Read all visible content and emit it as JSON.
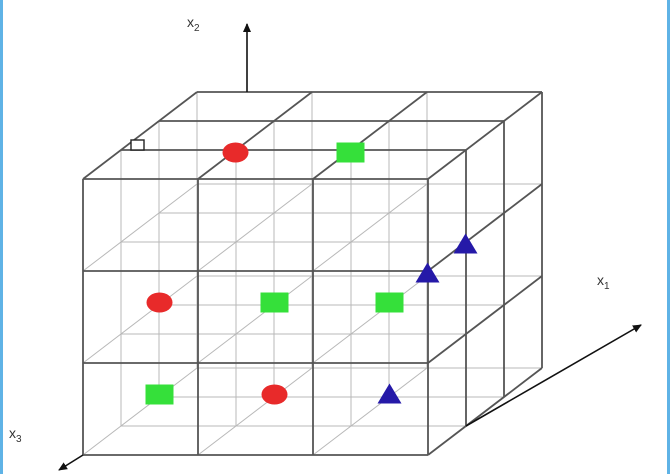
{
  "axes": {
    "x1": {
      "label": "x",
      "sub": "1"
    },
    "x2": {
      "label": "x",
      "sub": "2"
    },
    "x3": {
      "label": "x",
      "sub": "3"
    }
  },
  "grid": {
    "divisions": 3
  },
  "colors": {
    "circle": "#e82a2a",
    "square": "#35e03a",
    "triangle": "#2519a8",
    "line": "#555555",
    "hidden_line": "#b8b8b8"
  },
  "markers": [
    {
      "shape": "circle",
      "cell": [
        0,
        2,
        2
      ]
    },
    {
      "shape": "circle",
      "cell": [
        0,
        1,
        0
      ]
    },
    {
      "shape": "circle",
      "cell": [
        1,
        0,
        0
      ]
    },
    {
      "shape": "square",
      "cell": [
        1,
        2,
        2
      ]
    },
    {
      "shape": "square",
      "cell": [
        1,
        1,
        0
      ]
    },
    {
      "shape": "square",
      "cell": [
        2,
        1,
        0
      ]
    },
    {
      "shape": "square",
      "cell": [
        0,
        0,
        0
      ]
    },
    {
      "shape": "triangle",
      "cell": [
        2,
        1,
        1
      ]
    },
    {
      "shape": "triangle",
      "cell": [
        2,
        1,
        2
      ]
    },
    {
      "shape": "triangle",
      "cell": [
        2,
        0,
        0
      ]
    }
  ]
}
